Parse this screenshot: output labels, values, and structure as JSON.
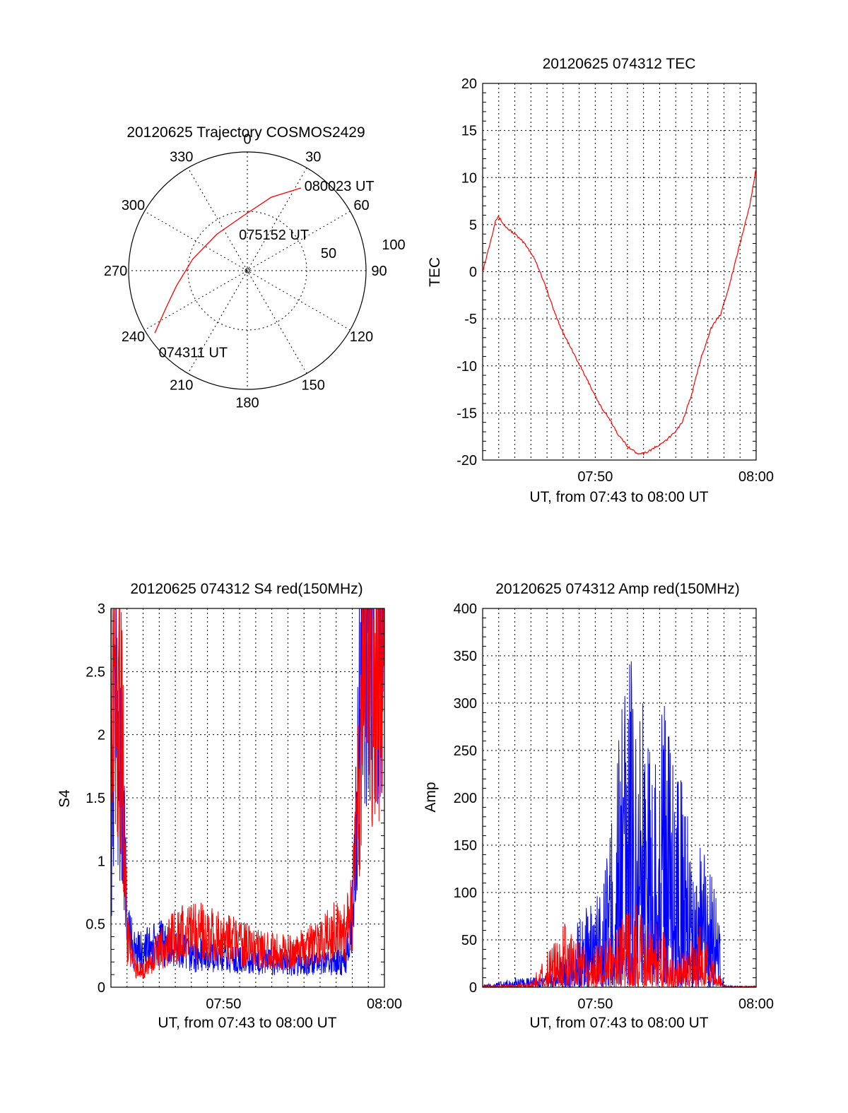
{
  "chart_data": [
    {
      "type": "polar",
      "title": "20120625 Trajectory COSMOS2429",
      "angle_labels": [
        "0",
        "30",
        "60",
        "90",
        "120",
        "150",
        "180",
        "210",
        "240",
        "270",
        "300",
        "330"
      ],
      "radius_labels": [
        "50",
        "100"
      ],
      "trajectory_color": "#ff0000",
      "trajectory": [
        {
          "az": 236,
          "r": 94
        },
        {
          "az": 245,
          "r": 76
        },
        {
          "az": 258,
          "r": 61
        },
        {
          "az": 282,
          "r": 47
        },
        {
          "az": 320,
          "r": 40
        },
        {
          "az": 355,
          "r": 46
        },
        {
          "az": 18,
          "r": 65
        },
        {
          "az": 33,
          "r": 83
        }
      ],
      "annotations": [
        {
          "text": "080023 UT",
          "az": 33,
          "r": 86
        },
        {
          "text": "075152 UT",
          "az": 345,
          "r": 32
        },
        {
          "text": "074311 UT",
          "az": 228,
          "r": 102
        }
      ]
    },
    {
      "type": "line",
      "title": "20120625 074312 TEC",
      "xlabel": "UT, from 07:43 to 08:00 UT",
      "ylabel": "TEC",
      "xlim": [
        43,
        60
      ],
      "ylim": [
        -20,
        20
      ],
      "xticks": [
        {
          "v": 50,
          "label": "07:50"
        },
        {
          "v": 60,
          "label": "08:00"
        }
      ],
      "yticks": [
        "-20",
        "-15",
        "-10",
        "-5",
        "0",
        "5",
        "10",
        "15",
        "20"
      ],
      "series": [
        {
          "color": "#ff0000",
          "x": [
            43.0,
            43.3,
            43.6,
            43.8,
            44.0,
            44.4,
            45.0,
            45.6,
            46.2,
            46.8,
            47.4,
            48.0,
            48.6,
            49.2,
            49.8,
            50.4,
            51.0,
            51.5,
            52.0,
            52.5,
            53.0,
            53.6,
            54.2,
            54.8,
            55.4,
            56.0,
            56.6,
            57.2,
            57.8,
            58.4,
            59.0,
            59.6,
            60.0
          ],
          "y": [
            0,
            2,
            4,
            5.5,
            5.8,
            4.8,
            4.0,
            3.0,
            1.5,
            -1,
            -4,
            -6.5,
            -8.5,
            -10.5,
            -12.5,
            -14.5,
            -16,
            -17.5,
            -18.5,
            -19.2,
            -19.3,
            -18.8,
            -18.2,
            -17.3,
            -16.0,
            -13.0,
            -9.0,
            -6.0,
            -4.5,
            -1,
            3,
            7,
            11
          ]
        }
      ]
    },
    {
      "type": "line",
      "title": "20120625 074312 S4 red(150MHz)",
      "xlabel": "UT, from 07:43 to 08:00 UT",
      "ylabel": "S4",
      "xlim": [
        43,
        60
      ],
      "ylim": [
        0,
        3
      ],
      "xticks": [
        {
          "v": 50,
          "label": "07:50"
        },
        {
          "v": 60,
          "label": "08:00"
        }
      ],
      "yticks": [
        "0",
        "0.5",
        "1",
        "1.5",
        "2",
        "2.5",
        "3"
      ],
      "series": [
        {
          "name": "",
          "color": "#0000ff",
          "x": [
            43.0,
            43.2,
            43.5,
            43.8,
            44.0,
            44.5,
            45,
            46,
            47,
            48,
            49,
            50,
            51,
            52,
            53,
            54,
            55,
            56,
            57,
            57.6,
            58.0,
            58.3,
            58.6,
            59.0,
            59.5,
            60.0
          ],
          "y": [
            1.0,
            2.2,
            1.8,
            1.2,
            0.5,
            0.28,
            0.3,
            0.35,
            0.3,
            0.25,
            0.25,
            0.22,
            0.22,
            0.2,
            0.2,
            0.2,
            0.18,
            0.18,
            0.2,
            0.2,
            0.6,
            1.5,
            2.8,
            3.0,
            3.0,
            3.0
          ]
        },
        {
          "name": "",
          "color": "#ff0000",
          "x": [
            43.0,
            43.2,
            43.5,
            43.8,
            44.0,
            44.5,
            45,
            46,
            47,
            48,
            49,
            50,
            51,
            52,
            53,
            54,
            55,
            56,
            57,
            57.6,
            58.0,
            58.3,
            58.6,
            59.0,
            59.5,
            60.0
          ],
          "y": [
            2.0,
            3.0,
            2.5,
            1.5,
            0.4,
            0.15,
            0.13,
            0.3,
            0.4,
            0.45,
            0.42,
            0.38,
            0.35,
            0.3,
            0.28,
            0.27,
            0.3,
            0.35,
            0.45,
            0.45,
            0.6,
            1.2,
            2.5,
            3.0,
            2.6,
            3.0
          ]
        }
      ]
    },
    {
      "type": "line",
      "title": "20120625 074312 Amp red(150MHz)",
      "xlabel": "UT, from 07:43 to 08:00 UT",
      "ylabel": "Amp",
      "xlim": [
        43,
        60
      ],
      "ylim": [
        0,
        400
      ],
      "xticks": [
        {
          "v": 50,
          "label": "07:50"
        },
        {
          "v": 60,
          "label": "08:00"
        }
      ],
      "yticks": [
        "0",
        "50",
        "100",
        "150",
        "200",
        "250",
        "300",
        "350",
        "400"
      ],
      "series": [
        {
          "name": "",
          "color": "#0000ff",
          "x": [
            43,
            44,
            45,
            46,
            47,
            48,
            49,
            50,
            50.5,
            51,
            51.5,
            52,
            52.5,
            53,
            53.5,
            54,
            54.5,
            55,
            55.5,
            56,
            56.5,
            57,
            57.5,
            58,
            59,
            60
          ],
          "y": [
            2,
            5,
            8,
            8,
            12,
            30,
            60,
            90,
            110,
            150,
            230,
            280,
            300,
            260,
            250,
            240,
            260,
            200,
            180,
            140,
            130,
            110,
            90,
            2,
            1,
            1
          ]
        },
        {
          "name": "",
          "color": "#ff0000",
          "x": [
            43,
            44,
            45,
            46,
            47,
            48,
            49,
            50,
            50.5,
            51,
            51.5,
            52,
            52.5,
            53,
            53.5,
            54,
            54.5,
            55,
            55.5,
            56,
            56.5,
            57,
            57.5,
            58,
            59,
            60
          ],
          "y": [
            1,
            2,
            3,
            5,
            30,
            60,
            40,
            35,
            45,
            50,
            60,
            70,
            75,
            70,
            60,
            55,
            45,
            40,
            30,
            40,
            55,
            40,
            20,
            1,
            1,
            1
          ]
        }
      ]
    }
  ]
}
